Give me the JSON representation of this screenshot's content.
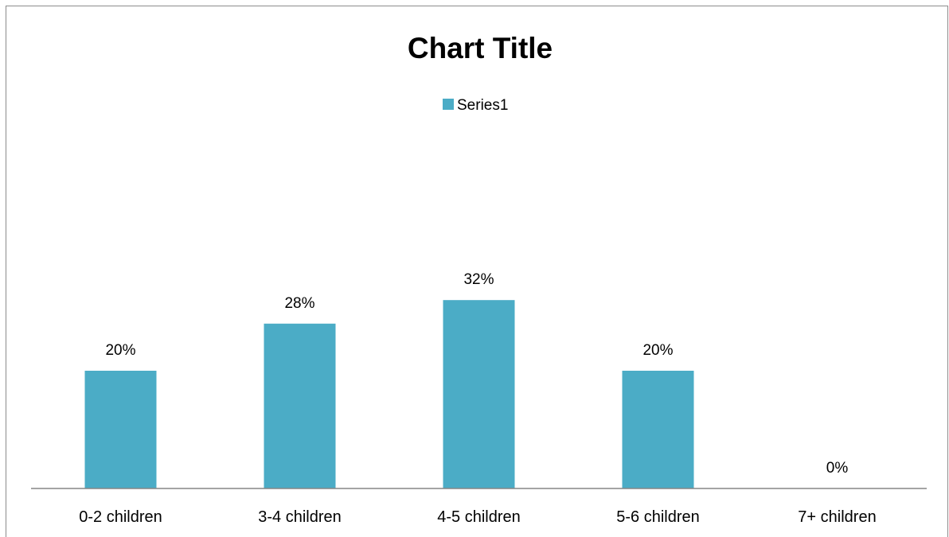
{
  "chart_data": {
    "type": "bar",
    "title": "Chart Title",
    "categories": [
      "0-2 children",
      "3-4 children",
      "4-5 children",
      "5-6 children",
      "7+ children"
    ],
    "series": [
      {
        "name": "Series1",
        "values": [
          20,
          28,
          32,
          20,
          0
        ],
        "labels": [
          "20%",
          "28%",
          "32%",
          "20%",
          "0%"
        ]
      }
    ],
    "legend": "top",
    "grid": false,
    "ylim": [
      0,
      40
    ],
    "bar_color": "#4BACC6",
    "axis_color": "#868686"
  }
}
